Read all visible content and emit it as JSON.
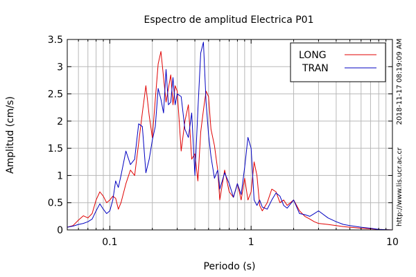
{
  "chart_data": {
    "type": "line",
    "title": "Espectro de amplitud Electrica P01",
    "xlabel": "Periodo (s)",
    "ylabel": "Amplitud (cm/s)",
    "xscale": "log",
    "xlim": [
      0.05,
      10
    ],
    "ylim": [
      0,
      3.5
    ],
    "x_ticks": [
      {
        "value": 0.1,
        "label": "0.1"
      },
      {
        "value": 1,
        "label": "1"
      },
      {
        "value": 10,
        "label": "10"
      }
    ],
    "y_ticks": [
      {
        "value": 0,
        "label": "0"
      },
      {
        "value": 0.5,
        "label": "0.5"
      },
      {
        "value": 1,
        "label": "1"
      },
      {
        "value": 1.5,
        "label": "1.5"
      },
      {
        "value": 2,
        "label": "2"
      },
      {
        "value": 2.5,
        "label": "2.5"
      },
      {
        "value": 3,
        "label": "3"
      },
      {
        "value": 3.5,
        "label": "3.5"
      }
    ],
    "grid": true,
    "legend_position": "top-right",
    "side_texts": {
      "timestamp": "2018-11-17 08:19:09 AM",
      "url": "http://www.lis.ucr.ac.cr"
    },
    "series": [
      {
        "name": "LONG",
        "color": "#e00000",
        "x": [
          0.05,
          0.055,
          0.06,
          0.065,
          0.07,
          0.075,
          0.08,
          0.085,
          0.09,
          0.095,
          0.1,
          0.105,
          0.11,
          0.115,
          0.12,
          0.13,
          0.14,
          0.15,
          0.16,
          0.17,
          0.18,
          0.19,
          0.2,
          0.21,
          0.22,
          0.23,
          0.24,
          0.25,
          0.26,
          0.27,
          0.28,
          0.29,
          0.3,
          0.32,
          0.34,
          0.36,
          0.38,
          0.4,
          0.42,
          0.44,
          0.46,
          0.48,
          0.5,
          0.52,
          0.55,
          0.58,
          0.6,
          0.65,
          0.7,
          0.75,
          0.8,
          0.85,
          0.9,
          0.95,
          1.0,
          1.05,
          1.1,
          1.15,
          1.2,
          1.3,
          1.4,
          1.5,
          1.6,
          1.7,
          1.8,
          2.0,
          2.2,
          2.4,
          2.6,
          2.8,
          3.0,
          3.5,
          4.0,
          4.5,
          5.0,
          6.0,
          7.0,
          8.0,
          10.0
        ],
        "y": [
          0.05,
          0.08,
          0.18,
          0.26,
          0.22,
          0.3,
          0.55,
          0.7,
          0.62,
          0.5,
          0.55,
          0.62,
          0.58,
          0.38,
          0.5,
          0.85,
          1.1,
          1.0,
          1.6,
          2.15,
          2.65,
          2.1,
          1.7,
          2.4,
          3.05,
          3.28,
          2.8,
          2.35,
          2.6,
          2.85,
          2.3,
          2.65,
          2.55,
          1.45,
          2.0,
          2.3,
          1.3,
          1.4,
          0.9,
          1.8,
          2.2,
          2.55,
          2.45,
          1.85,
          1.55,
          1.1,
          0.55,
          1.1,
          0.7,
          0.6,
          0.85,
          0.55,
          0.95,
          0.55,
          0.7,
          1.25,
          1.0,
          0.45,
          0.35,
          0.5,
          0.75,
          0.7,
          0.5,
          0.55,
          0.45,
          0.55,
          0.35,
          0.25,
          0.2,
          0.15,
          0.12,
          0.1,
          0.08,
          0.06,
          0.05,
          0.03,
          0.02,
          0.01,
          0.0
        ]
      },
      {
        "name": "TRAN",
        "color": "#0000c0",
        "x": [
          0.05,
          0.055,
          0.06,
          0.065,
          0.07,
          0.075,
          0.08,
          0.085,
          0.09,
          0.095,
          0.1,
          0.105,
          0.11,
          0.115,
          0.12,
          0.13,
          0.14,
          0.15,
          0.16,
          0.17,
          0.18,
          0.19,
          0.2,
          0.21,
          0.22,
          0.23,
          0.24,
          0.25,
          0.26,
          0.27,
          0.28,
          0.29,
          0.3,
          0.32,
          0.34,
          0.36,
          0.38,
          0.4,
          0.42,
          0.44,
          0.46,
          0.48,
          0.5,
          0.52,
          0.55,
          0.58,
          0.6,
          0.65,
          0.7,
          0.75,
          0.8,
          0.85,
          0.9,
          0.95,
          1.0,
          1.05,
          1.1,
          1.15,
          1.2,
          1.3,
          1.4,
          1.5,
          1.6,
          1.7,
          1.8,
          2.0,
          2.2,
          2.4,
          2.6,
          2.8,
          3.0,
          3.5,
          4.0,
          4.5,
          5.0,
          6.0,
          7.0,
          8.0,
          10.0
        ],
        "y": [
          0.05,
          0.07,
          0.1,
          0.12,
          0.15,
          0.2,
          0.35,
          0.48,
          0.38,
          0.3,
          0.35,
          0.55,
          0.9,
          0.78,
          1.0,
          1.45,
          1.2,
          1.3,
          1.95,
          1.9,
          1.05,
          1.3,
          1.65,
          1.9,
          2.6,
          2.4,
          2.15,
          2.95,
          2.3,
          2.35,
          2.8,
          2.3,
          2.5,
          2.45,
          1.85,
          1.7,
          2.15,
          1.0,
          2.2,
          3.25,
          3.45,
          2.35,
          1.75,
          1.35,
          0.95,
          1.1,
          0.75,
          1.05,
          0.85,
          0.6,
          0.85,
          0.65,
          1.15,
          1.7,
          1.5,
          0.55,
          0.45,
          0.55,
          0.42,
          0.38,
          0.55,
          0.68,
          0.62,
          0.45,
          0.4,
          0.55,
          0.3,
          0.28,
          0.25,
          0.3,
          0.35,
          0.22,
          0.15,
          0.1,
          0.08,
          0.05,
          0.03,
          0.01,
          0.0
        ]
      }
    ]
  }
}
